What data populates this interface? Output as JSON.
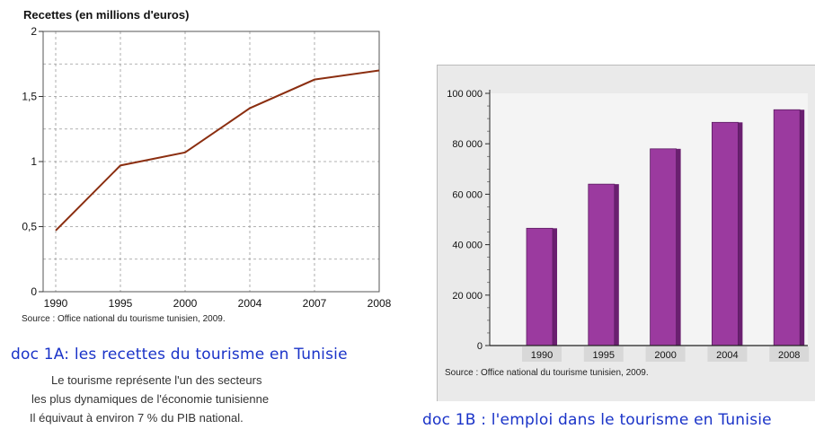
{
  "chart_data": [
    {
      "type": "line",
      "title": "Recettes (en millions d'euros)",
      "x": [
        "1990",
        "1995",
        "2000",
        "2004",
        "2007",
        "2008"
      ],
      "series": [
        {
          "values": [
            0.47,
            0.97,
            1.07,
            1.41,
            1.63,
            1.7
          ]
        }
      ],
      "ylim": [
        0,
        2
      ],
      "yticks": [
        "0",
        "0,5",
        "1",
        "1,5",
        "2"
      ],
      "grid": true,
      "source": "Source : Office national du tourisme tunisien, 2009.",
      "line_color": "#8b2e10"
    },
    {
      "type": "bar",
      "categories": [
        "1990",
        "1995",
        "2000",
        "2004",
        "2008"
      ],
      "values": [
        46500,
        64000,
        78000,
        88500,
        93500
      ],
      "ylim": [
        0,
        100000
      ],
      "yticks": [
        "0",
        "20 000",
        "40 000",
        "60 000",
        "80 000",
        "100 000"
      ],
      "grid": false,
      "source": "Source : Office national du tourisme tunisien, 2009.",
      "bar_color": "#9b3a9f"
    }
  ],
  "doc_a": {
    "caption": "doc 1A: les recettes du tourisme en Tunisie",
    "text": [
      "Le tourisme représente l'un des secteurs",
      "les plus dynamiques de l'économie tunisienne",
      "Il équivaut à environ 7 % du PIB national."
    ]
  },
  "doc_b": {
    "caption": "doc 1B : l'emploi dans le tourisme en Tunisie"
  }
}
